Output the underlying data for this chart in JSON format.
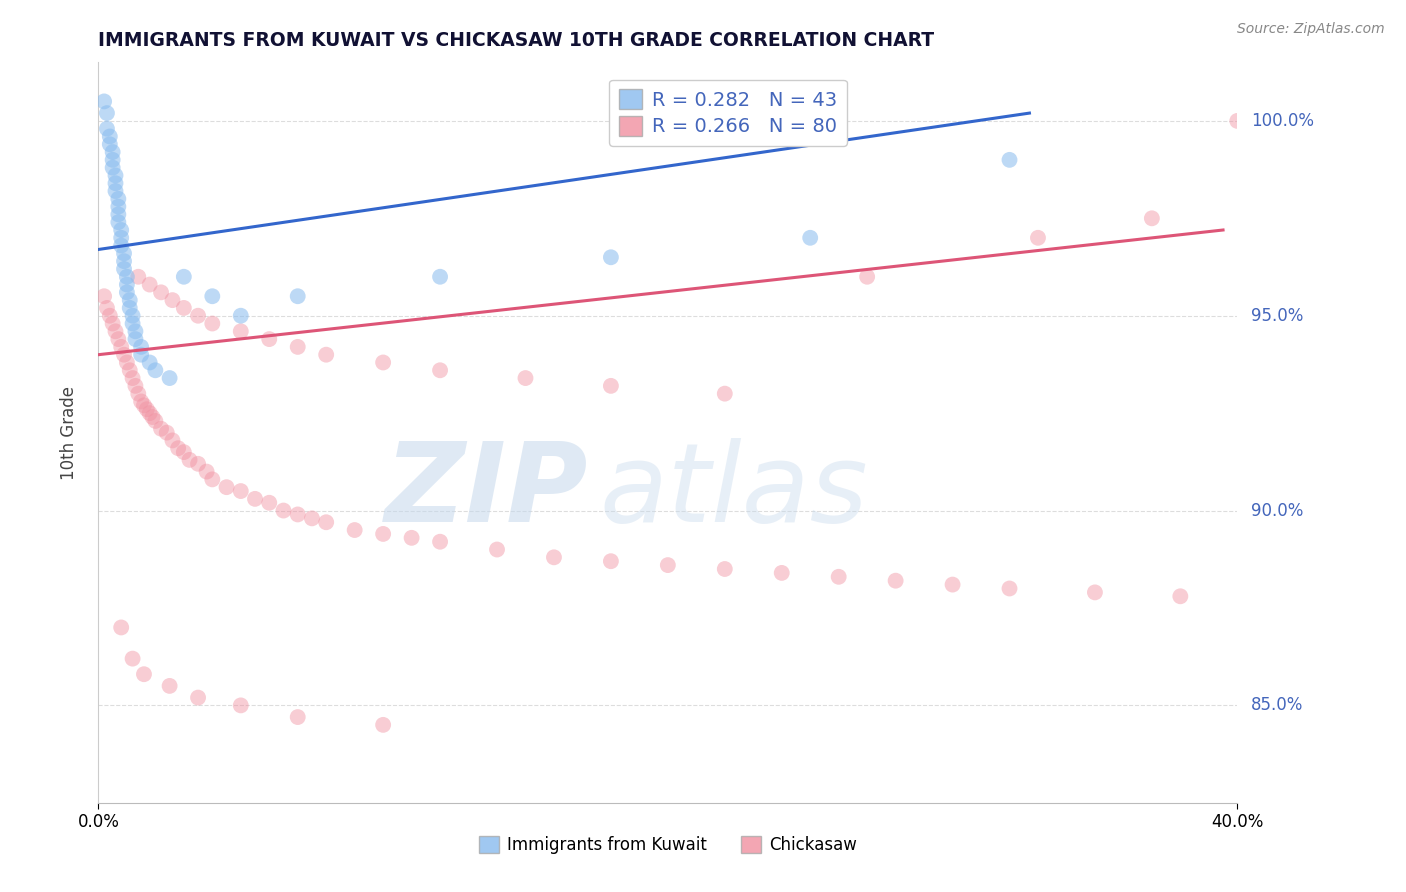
{
  "title": "IMMIGRANTS FROM KUWAIT VS CHICKASAW 10TH GRADE CORRELATION CHART",
  "source_text": "Source: ZipAtlas.com",
  "ylabel": "10th Grade",
  "xlim": [
    0.0,
    0.4
  ],
  "ylim": [
    0.825,
    1.015
  ],
  "yticks": [
    0.85,
    0.9,
    0.95,
    1.0
  ],
  "legend_entries": [
    {
      "label": "R = 0.282   N = 43"
    },
    {
      "label": "R = 0.266   N = 80"
    }
  ],
  "legend_bottom_entries": [
    {
      "label": "Immigrants from Kuwait"
    },
    {
      "label": "Chickasaw"
    }
  ],
  "blue_scatter_x": [
    0.002,
    0.003,
    0.003,
    0.004,
    0.004,
    0.005,
    0.005,
    0.005,
    0.006,
    0.006,
    0.006,
    0.007,
    0.007,
    0.007,
    0.007,
    0.008,
    0.008,
    0.008,
    0.009,
    0.009,
    0.009,
    0.01,
    0.01,
    0.01,
    0.011,
    0.011,
    0.012,
    0.012,
    0.013,
    0.013,
    0.015,
    0.015,
    0.018,
    0.02,
    0.025,
    0.03,
    0.04,
    0.05,
    0.07,
    0.12,
    0.18,
    0.25,
    0.32
  ],
  "blue_scatter_y": [
    1.005,
    1.002,
    0.998,
    0.996,
    0.994,
    0.992,
    0.99,
    0.988,
    0.986,
    0.984,
    0.982,
    0.98,
    0.978,
    0.976,
    0.974,
    0.972,
    0.97,
    0.968,
    0.966,
    0.964,
    0.962,
    0.96,
    0.958,
    0.956,
    0.954,
    0.952,
    0.95,
    0.948,
    0.946,
    0.944,
    0.942,
    0.94,
    0.938,
    0.936,
    0.934,
    0.96,
    0.955,
    0.95,
    0.955,
    0.96,
    0.965,
    0.97,
    0.99
  ],
  "pink_scatter_x": [
    0.002,
    0.003,
    0.004,
    0.005,
    0.006,
    0.007,
    0.008,
    0.009,
    0.01,
    0.011,
    0.012,
    0.013,
    0.014,
    0.015,
    0.016,
    0.017,
    0.018,
    0.019,
    0.02,
    0.022,
    0.024,
    0.026,
    0.028,
    0.03,
    0.032,
    0.035,
    0.038,
    0.04,
    0.045,
    0.05,
    0.055,
    0.06,
    0.065,
    0.07,
    0.075,
    0.08,
    0.09,
    0.1,
    0.11,
    0.12,
    0.14,
    0.16,
    0.18,
    0.2,
    0.22,
    0.24,
    0.26,
    0.28,
    0.3,
    0.32,
    0.35,
    0.38,
    0.014,
    0.018,
    0.022,
    0.026,
    0.03,
    0.035,
    0.04,
    0.05,
    0.06,
    0.07,
    0.08,
    0.1,
    0.12,
    0.15,
    0.18,
    0.22,
    0.27,
    0.33,
    0.37,
    0.4,
    0.008,
    0.012,
    0.016,
    0.025,
    0.035,
    0.05,
    0.07,
    0.1
  ],
  "pink_scatter_y": [
    0.955,
    0.952,
    0.95,
    0.948,
    0.946,
    0.944,
    0.942,
    0.94,
    0.938,
    0.936,
    0.934,
    0.932,
    0.93,
    0.928,
    0.927,
    0.926,
    0.925,
    0.924,
    0.923,
    0.921,
    0.92,
    0.918,
    0.916,
    0.915,
    0.913,
    0.912,
    0.91,
    0.908,
    0.906,
    0.905,
    0.903,
    0.902,
    0.9,
    0.899,
    0.898,
    0.897,
    0.895,
    0.894,
    0.893,
    0.892,
    0.89,
    0.888,
    0.887,
    0.886,
    0.885,
    0.884,
    0.883,
    0.882,
    0.881,
    0.88,
    0.879,
    0.878,
    0.96,
    0.958,
    0.956,
    0.954,
    0.952,
    0.95,
    0.948,
    0.946,
    0.944,
    0.942,
    0.94,
    0.938,
    0.936,
    0.934,
    0.932,
    0.93,
    0.96,
    0.97,
    0.975,
    1.0,
    0.87,
    0.862,
    0.858,
    0.855,
    0.852,
    0.85,
    0.847,
    0.845
  ],
  "blue_line_x0": 0.0,
  "blue_line_x1": 0.327,
  "blue_line_y0": 0.967,
  "blue_line_y1": 1.002,
  "pink_line_x0": 0.0,
  "pink_line_x1": 0.395,
  "pink_line_y0": 0.94,
  "pink_line_y1": 0.972,
  "blue_color": "#88bbee",
  "pink_color": "#f090a0",
  "blue_line_color": "#3366cc",
  "pink_line_color": "#dd5577",
  "grid_color": "#dddddd",
  "axis_tick_color": "#4466bb",
  "scatter_size": 130
}
